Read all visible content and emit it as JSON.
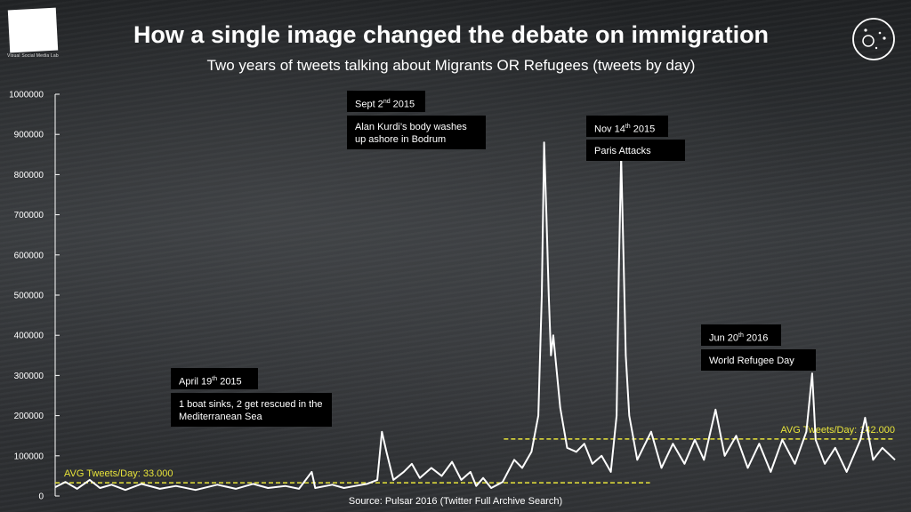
{
  "header": {
    "title": "How a single image changed the debate on immigration",
    "subtitle": "Two years of tweets talking about Migrants OR Refugees (tweets by day)"
  },
  "logo": {
    "icon": "white-square-logo",
    "caption": "Visual Social Media Lab"
  },
  "brand_icon": "circle-dots-icon",
  "source": "Source: Pulsar 2016 (Twitter Full Archive Search)",
  "colors": {
    "line": "#ffffff",
    "average": "#e8e43a",
    "annotation_bg": "#000000"
  },
  "annotations": [
    {
      "date": "April 19",
      "sup": "th",
      "year": " 2015",
      "text": "1 boat sinks, 2 get rescued in the Mediterranean Sea"
    },
    {
      "date": "Sept 2",
      "sup": "nd",
      "year": " 2015",
      "text": "Alan Kurdi’s body washes up ashore in Bodrum"
    },
    {
      "date": "Nov 14",
      "sup": "th",
      "year": " 2015",
      "text": "Paris Attacks"
    },
    {
      "date": "Jun 20",
      "sup": "th",
      "year": " 2016",
      "text": "World Refugee Day"
    }
  ],
  "chart_data": {
    "type": "line",
    "title": "How a single image changed the debate on immigration",
    "subtitle": "Two years of tweets talking about Migrants OR Refugees (tweets by day)",
    "xlabel": "",
    "ylabel": "",
    "ylim": [
      0,
      1000000
    ],
    "yticks": [
      0,
      100000,
      200000,
      300000,
      400000,
      500000,
      600000,
      700000,
      800000,
      900000,
      1000000
    ],
    "ytick_labels": [
      "0",
      "100000",
      "200000",
      "300000",
      "400000",
      "500000",
      "600000",
      "700000",
      "800000",
      "900000",
      "1000000"
    ],
    "grid": false,
    "x_start": "2014-09-01",
    "x_end": "2016-08-31",
    "series": [
      {
        "values": [
          [
            "2014-09-01",
            22000
          ],
          [
            "2014-09-10",
            35000
          ],
          [
            "2014-09-20",
            18000
          ],
          [
            "2014-10-01",
            40000
          ],
          [
            "2014-10-10",
            20000
          ],
          [
            "2014-10-20",
            28000
          ],
          [
            "2014-11-01",
            15000
          ],
          [
            "2014-11-15",
            30000
          ],
          [
            "2014-12-01",
            18000
          ],
          [
            "2014-12-15",
            25000
          ],
          [
            "2015-01-01",
            15000
          ],
          [
            "2015-01-20",
            28000
          ],
          [
            "2015-02-05",
            18000
          ],
          [
            "2015-02-20",
            30000
          ],
          [
            "2015-03-05",
            20000
          ],
          [
            "2015-03-20",
            25000
          ],
          [
            "2015-04-01",
            18000
          ],
          [
            "2015-04-12",
            60000
          ],
          [
            "2015-04-15",
            20000
          ],
          [
            "2015-04-30",
            28000
          ],
          [
            "2015-05-10",
            20000
          ],
          [
            "2015-05-20",
            25000
          ],
          [
            "2015-05-30",
            30000
          ],
          [
            "2015-06-08",
            40000
          ],
          [
            "2015-06-12",
            160000
          ],
          [
            "2015-06-16",
            110000
          ],
          [
            "2015-06-22",
            40000
          ],
          [
            "2015-07-01",
            60000
          ],
          [
            "2015-07-08",
            80000
          ],
          [
            "2015-07-15",
            45000
          ],
          [
            "2015-07-25",
            70000
          ],
          [
            "2015-08-03",
            50000
          ],
          [
            "2015-08-12",
            85000
          ],
          [
            "2015-08-20",
            40000
          ],
          [
            "2015-08-28",
            60000
          ],
          [
            "2015-09-02",
            25000
          ],
          [
            "2015-09-08",
            45000
          ],
          [
            "2015-09-15",
            20000
          ],
          [
            "2015-09-25",
            35000
          ],
          [
            "2015-10-05",
            90000
          ],
          [
            "2015-10-12",
            70000
          ],
          [
            "2015-10-20",
            110000
          ],
          [
            "2015-10-26",
            200000
          ],
          [
            "2015-10-29",
            500000
          ],
          [
            "2015-10-31",
            880000
          ],
          [
            "2015-11-02",
            700000
          ],
          [
            "2015-11-04",
            500000
          ],
          [
            "2015-11-06",
            350000
          ],
          [
            "2015-11-08",
            400000
          ],
          [
            "2015-11-10",
            340000
          ],
          [
            "2015-11-14",
            220000
          ],
          [
            "2015-11-20",
            120000
          ],
          [
            "2015-11-28",
            110000
          ],
          [
            "2015-12-05",
            130000
          ],
          [
            "2015-12-12",
            80000
          ],
          [
            "2015-12-20",
            100000
          ],
          [
            "2015-12-28",
            60000
          ],
          [
            "2016-01-02",
            200000
          ],
          [
            "2016-01-04",
            560000
          ],
          [
            "2016-01-06",
            845000
          ],
          [
            "2016-01-08",
            600000
          ],
          [
            "2016-01-10",
            350000
          ],
          [
            "2016-01-13",
            200000
          ],
          [
            "2016-01-20",
            90000
          ],
          [
            "2016-02-01",
            160000
          ],
          [
            "2016-02-10",
            70000
          ],
          [
            "2016-02-20",
            130000
          ],
          [
            "2016-03-01",
            80000
          ],
          [
            "2016-03-10",
            140000
          ],
          [
            "2016-03-18",
            90000
          ],
          [
            "2016-03-28",
            215000
          ],
          [
            "2016-04-05",
            100000
          ],
          [
            "2016-04-15",
            150000
          ],
          [
            "2016-04-25",
            70000
          ],
          [
            "2016-05-05",
            130000
          ],
          [
            "2016-05-15",
            60000
          ],
          [
            "2016-05-25",
            140000
          ],
          [
            "2016-06-05",
            80000
          ],
          [
            "2016-06-15",
            160000
          ],
          [
            "2016-06-20",
            305000
          ],
          [
            "2016-06-23",
            140000
          ],
          [
            "2016-07-01",
            80000
          ],
          [
            "2016-07-10",
            120000
          ],
          [
            "2016-07-20",
            60000
          ],
          [
            "2016-08-01",
            140000
          ],
          [
            "2016-08-05",
            195000
          ],
          [
            "2016-08-12",
            90000
          ],
          [
            "2016-08-20",
            120000
          ],
          [
            "2016-08-31",
            90000
          ]
        ]
      }
    ],
    "average_lines": [
      {
        "label": "AVG Tweets/Day: 33.000",
        "value": 33000,
        "from": "2014-09-01",
        "to": "2016-01-31"
      },
      {
        "label": "AVG Tweets/Day: 142.000",
        "value": 142000,
        "from": "2015-09-26",
        "to": "2016-08-31"
      }
    ]
  }
}
